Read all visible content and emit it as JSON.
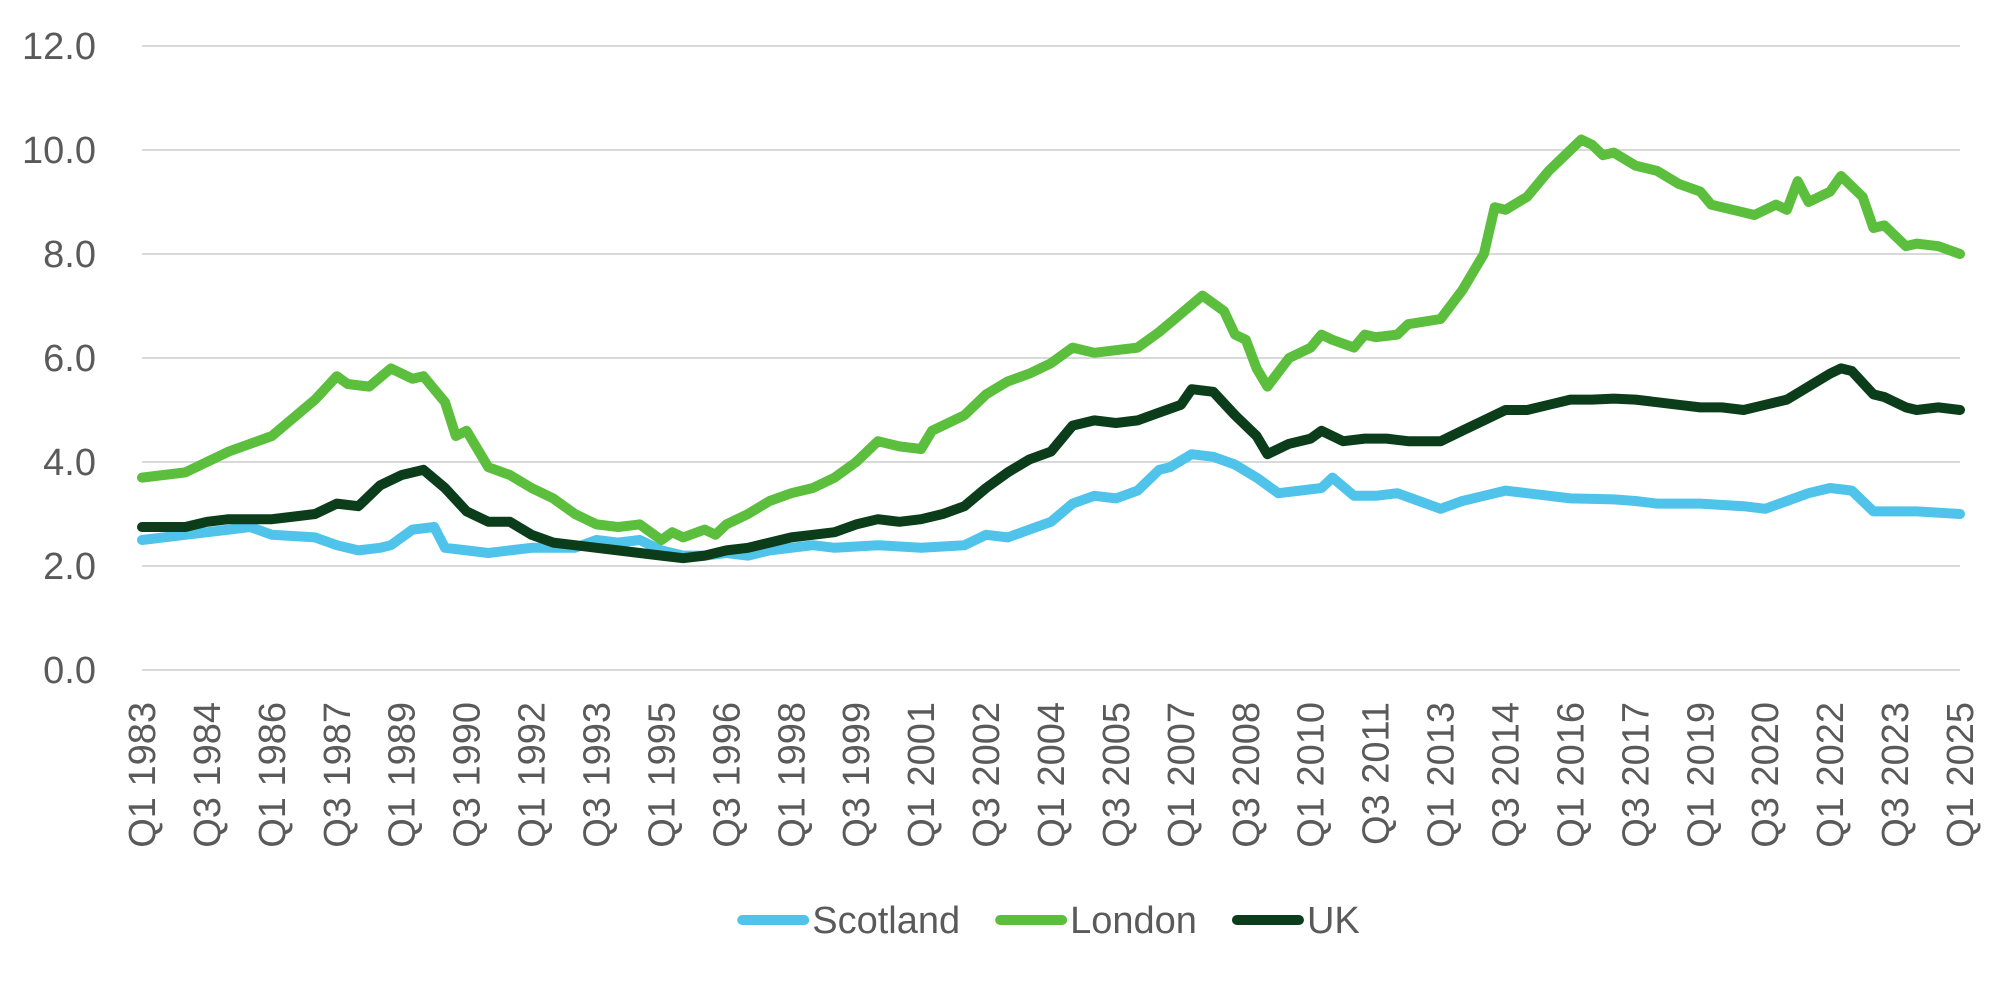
{
  "chart_data": {
    "type": "line",
    "title": "",
    "xlabel": "",
    "ylabel": "",
    "ylim": [
      0,
      12
    ],
    "yticks": [
      "0.0",
      "2.0",
      "4.0",
      "6.0",
      "8.0",
      "10.0",
      "12.0"
    ],
    "xtick_labels": [
      "Q1 1983",
      "Q3 1984",
      "Q1 1986",
      "Q3 1987",
      "Q1 1989",
      "Q3 1990",
      "Q1 1992",
      "Q3 1993",
      "Q1 1995",
      "Q3 1996",
      "Q1 1998",
      "Q3 1999",
      "Q1 2001",
      "Q3 2002",
      "Q1 2004",
      "Q3 2005",
      "Q1 2007",
      "Q3 2008",
      "Q1 2010",
      "Q3 2011",
      "Q1 2013",
      "Q3 2014",
      "Q1 2016",
      "Q3 2017",
      "Q1 2019",
      "Q3 2020",
      "Q1 2022",
      "Q3 2023",
      "Q1 2025"
    ],
    "x_start": "Q1 1983",
    "x_end": "Q1 2025",
    "grid": true,
    "legend_position": "bottom",
    "series": [
      {
        "name": "Scotland",
        "color": "#4fc3ea",
        "points": [
          [
            "Q1 1983",
            2.5
          ],
          [
            "Q1 1984",
            2.6
          ],
          [
            "Q1 1985",
            2.7
          ],
          [
            "Q3 1985",
            2.75
          ],
          [
            "Q1 1986",
            2.6
          ],
          [
            "Q1 1987",
            2.55
          ],
          [
            "Q3 1987",
            2.4
          ],
          [
            "Q1 1988",
            2.3
          ],
          [
            "Q3 1988",
            2.35
          ],
          [
            "Q4 1988",
            2.4
          ],
          [
            "Q2 1989",
            2.7
          ],
          [
            "Q4 1989",
            2.75
          ],
          [
            "Q1 1990",
            2.35
          ],
          [
            "Q3 1990",
            2.3
          ],
          [
            "Q1 1991",
            2.25
          ],
          [
            "Q3 1991",
            2.3
          ],
          [
            "Q1 1992",
            2.35
          ],
          [
            "Q1 1993",
            2.35
          ],
          [
            "Q3 1993",
            2.5
          ],
          [
            "Q1 1994",
            2.45
          ],
          [
            "Q3 1994",
            2.5
          ],
          [
            "Q1 1995",
            2.3
          ],
          [
            "Q3 1995",
            2.2
          ],
          [
            "Q1 1996",
            2.2
          ],
          [
            "Q3 1996",
            2.25
          ],
          [
            "Q1 1997",
            2.2
          ],
          [
            "Q3 1997",
            2.3
          ],
          [
            "Q1 1998",
            2.35
          ],
          [
            "Q3 1998",
            2.4
          ],
          [
            "Q1 1999",
            2.35
          ],
          [
            "Q1 2000",
            2.4
          ],
          [
            "Q1 2001",
            2.35
          ],
          [
            "Q1 2002",
            2.4
          ],
          [
            "Q3 2002",
            2.6
          ],
          [
            "Q1 2003",
            2.55
          ],
          [
            "Q3 2003",
            2.7
          ],
          [
            "Q1 2004",
            2.85
          ],
          [
            "Q3 2004",
            3.2
          ],
          [
            "Q1 2005",
            3.35
          ],
          [
            "Q3 2005",
            3.3
          ],
          [
            "Q1 2006",
            3.45
          ],
          [
            "Q3 2006",
            3.85
          ],
          [
            "Q4 2006",
            3.9
          ],
          [
            "Q2 2007",
            4.15
          ],
          [
            "Q4 2007",
            4.1
          ],
          [
            "Q2 2008",
            3.95
          ],
          [
            "Q4 2008",
            3.7
          ],
          [
            "Q2 2009",
            3.4
          ],
          [
            "Q4 2009",
            3.45
          ],
          [
            "Q2 2010",
            3.5
          ],
          [
            "Q3 2010",
            3.7
          ],
          [
            "Q1 2011",
            3.35
          ],
          [
            "Q3 2011",
            3.35
          ],
          [
            "Q1 2012",
            3.4
          ],
          [
            "Q3 2012",
            3.25
          ],
          [
            "Q1 2013",
            3.1
          ],
          [
            "Q3 2013",
            3.25
          ],
          [
            "Q1 2014",
            3.35
          ],
          [
            "Q3 2014",
            3.45
          ],
          [
            "Q1 2015",
            3.4
          ],
          [
            "Q1 2016",
            3.3
          ],
          [
            "Q1 2017",
            3.28
          ],
          [
            "Q3 2017",
            3.25
          ],
          [
            "Q1 2018",
            3.2
          ],
          [
            "Q1 2019",
            3.2
          ],
          [
            "Q1 2020",
            3.15
          ],
          [
            "Q3 2020",
            3.1
          ],
          [
            "Q1 2021",
            3.25
          ],
          [
            "Q3 2021",
            3.4
          ],
          [
            "Q1 2022",
            3.5
          ],
          [
            "Q3 2022",
            3.45
          ],
          [
            "Q1 2023",
            3.05
          ],
          [
            "Q3 2023",
            3.05
          ],
          [
            "Q1 2024",
            3.05
          ],
          [
            "Q1 2025",
            3.0
          ]
        ]
      },
      {
        "name": "London",
        "color": "#5bbf3d",
        "points": [
          [
            "Q1 1983",
            3.7
          ],
          [
            "Q1 1984",
            3.8
          ],
          [
            "Q3 1984",
            4.0
          ],
          [
            "Q1 1985",
            4.2
          ],
          [
            "Q3 1985",
            4.35
          ],
          [
            "Q1 1986",
            4.5
          ],
          [
            "Q3 1986",
            4.85
          ],
          [
            "Q1 1987",
            5.2
          ],
          [
            "Q3 1987",
            5.65
          ],
          [
            "Q4 1987",
            5.5
          ],
          [
            "Q2 1988",
            5.45
          ],
          [
            "Q4 1988",
            5.8
          ],
          [
            "Q2 1989",
            5.6
          ],
          [
            "Q3 1989",
            5.65
          ],
          [
            "Q1 1990",
            5.15
          ],
          [
            "Q2 1990",
            4.5
          ],
          [
            "Q3 1990",
            4.6
          ],
          [
            "Q1 1991",
            3.9
          ],
          [
            "Q3 1991",
            3.75
          ],
          [
            "Q1 1992",
            3.5
          ],
          [
            "Q3 1992",
            3.3
          ],
          [
            "Q1 1993",
            3.0
          ],
          [
            "Q3 1993",
            2.8
          ],
          [
            "Q1 1994",
            2.75
          ],
          [
            "Q3 1994",
            2.8
          ],
          [
            "Q1 1995",
            2.5
          ],
          [
            "Q2 1995",
            2.65
          ],
          [
            "Q3 1995",
            2.55
          ],
          [
            "Q1 1996",
            2.7
          ],
          [
            "Q2 1996",
            2.6
          ],
          [
            "Q3 1996",
            2.8
          ],
          [
            "Q1 1997",
            3.0
          ],
          [
            "Q3 1997",
            3.25
          ],
          [
            "Q1 1998",
            3.4
          ],
          [
            "Q3 1998",
            3.5
          ],
          [
            "Q1 1999",
            3.7
          ],
          [
            "Q3 1999",
            4.0
          ],
          [
            "Q1 2000",
            4.4
          ],
          [
            "Q3 2000",
            4.3
          ],
          [
            "Q1 2001",
            4.25
          ],
          [
            "Q2 2001",
            4.6
          ],
          [
            "Q3 2001",
            4.7
          ],
          [
            "Q1 2002",
            4.9
          ],
          [
            "Q3 2002",
            5.3
          ],
          [
            "Q1 2003",
            5.55
          ],
          [
            "Q3 2003",
            5.7
          ],
          [
            "Q1 2004",
            5.9
          ],
          [
            "Q3 2004",
            6.2
          ],
          [
            "Q1 2005",
            6.1
          ],
          [
            "Q3 2005",
            6.15
          ],
          [
            "Q1 2006",
            6.2
          ],
          [
            "Q3 2006",
            6.5
          ],
          [
            "Q1 2007",
            6.85
          ],
          [
            "Q3 2007",
            7.2
          ],
          [
            "Q1 2008",
            6.9
          ],
          [
            "Q2 2008",
            6.45
          ],
          [
            "Q3 2008",
            6.35
          ],
          [
            "Q4 2008",
            5.8
          ],
          [
            "Q1 2009",
            5.45
          ],
          [
            "Q3 2009",
            6.0
          ],
          [
            "Q1 2010",
            6.2
          ],
          [
            "Q2 2010",
            6.45
          ],
          [
            "Q3 2010",
            6.35
          ],
          [
            "Q1 2011",
            6.2
          ],
          [
            "Q2 2011",
            6.45
          ],
          [
            "Q3 2011",
            6.4
          ],
          [
            "Q1 2012",
            6.45
          ],
          [
            "Q2 2012",
            6.65
          ],
          [
            "Q1 2013",
            6.75
          ],
          [
            "Q3 2013",
            7.3
          ],
          [
            "Q1 2014",
            8.0
          ],
          [
            "Q2 2014",
            8.9
          ],
          [
            "Q3 2014",
            8.85
          ],
          [
            "Q1 2015",
            9.1
          ],
          [
            "Q3 2015",
            9.6
          ],
          [
            "Q1 2016",
            10.0
          ],
          [
            "Q2 2016",
            10.2
          ],
          [
            "Q3 2016",
            10.1
          ],
          [
            "Q4 2016",
            9.9
          ],
          [
            "Q1 2017",
            9.95
          ],
          [
            "Q3 2017",
            9.7
          ],
          [
            "Q1 2018",
            9.6
          ],
          [
            "Q3 2018",
            9.35
          ],
          [
            "Q1 2019",
            9.2
          ],
          [
            "Q2 2019",
            8.95
          ],
          [
            "Q4 2019",
            8.85
          ],
          [
            "Q2 2020",
            8.75
          ],
          [
            "Q4 2020",
            8.95
          ],
          [
            "Q1 2021",
            8.85
          ],
          [
            "Q2 2021",
            9.4
          ],
          [
            "Q3 2021",
            9.0
          ],
          [
            "Q1 2022",
            9.2
          ],
          [
            "Q2 2022",
            9.5
          ],
          [
            "Q4 2022",
            9.1
          ],
          [
            "Q1 2023",
            8.5
          ],
          [
            "Q2 2023",
            8.55
          ],
          [
            "Q4 2023",
            8.15
          ],
          [
            "Q1 2024",
            8.2
          ],
          [
            "Q3 2024",
            8.15
          ],
          [
            "Q1 2025",
            8.0
          ]
        ]
      },
      {
        "name": "UK",
        "color": "#0b3d1a",
        "points": [
          [
            "Q1 1983",
            2.75
          ],
          [
            "Q1 1984",
            2.75
          ],
          [
            "Q3 1984",
            2.85
          ],
          [
            "Q1 1985",
            2.9
          ],
          [
            "Q3 1985",
            2.9
          ],
          [
            "Q1 1986",
            2.9
          ],
          [
            "Q3 1986",
            2.95
          ],
          [
            "Q1 1987",
            3.0
          ],
          [
            "Q3 1987",
            3.2
          ],
          [
            "Q1 1988",
            3.15
          ],
          [
            "Q3 1988",
            3.55
          ],
          [
            "Q1 1989",
            3.75
          ],
          [
            "Q3 1989",
            3.85
          ],
          [
            "Q1 1990",
            3.5
          ],
          [
            "Q3 1990",
            3.05
          ],
          [
            "Q1 1991",
            2.85
          ],
          [
            "Q3 1991",
            2.85
          ],
          [
            "Q1 1992",
            2.6
          ],
          [
            "Q3 1992",
            2.45
          ],
          [
            "Q1 1993",
            2.4
          ],
          [
            "Q3 1993",
            2.35
          ],
          [
            "Q1 1994",
            2.3
          ],
          [
            "Q3 1994",
            2.25
          ],
          [
            "Q1 1995",
            2.2
          ],
          [
            "Q3 1995",
            2.15
          ],
          [
            "Q1 1996",
            2.2
          ],
          [
            "Q3 1996",
            2.3
          ],
          [
            "Q1 1997",
            2.35
          ],
          [
            "Q3 1997",
            2.45
          ],
          [
            "Q1 1998",
            2.55
          ],
          [
            "Q3 1998",
            2.6
          ],
          [
            "Q1 1999",
            2.65
          ],
          [
            "Q3 1999",
            2.8
          ],
          [
            "Q1 2000",
            2.9
          ],
          [
            "Q3 2000",
            2.85
          ],
          [
            "Q1 2001",
            2.9
          ],
          [
            "Q3 2001",
            3.0
          ],
          [
            "Q1 2002",
            3.15
          ],
          [
            "Q3 2002",
            3.5
          ],
          [
            "Q1 2003",
            3.8
          ],
          [
            "Q3 2003",
            4.05
          ],
          [
            "Q1 2004",
            4.2
          ],
          [
            "Q3 2004",
            4.7
          ],
          [
            "Q1 2005",
            4.8
          ],
          [
            "Q3 2005",
            4.75
          ],
          [
            "Q1 2006",
            4.8
          ],
          [
            "Q3 2006",
            4.95
          ],
          [
            "Q1 2007",
            5.1
          ],
          [
            "Q2 2007",
            5.4
          ],
          [
            "Q4 2007",
            5.35
          ],
          [
            "Q2 2008",
            4.9
          ],
          [
            "Q4 2008",
            4.5
          ],
          [
            "Q1 2009",
            4.15
          ],
          [
            "Q3 2009",
            4.35
          ],
          [
            "Q1 2010",
            4.45
          ],
          [
            "Q2 2010",
            4.6
          ],
          [
            "Q4 2010",
            4.4
          ],
          [
            "Q2 2011",
            4.45
          ],
          [
            "Q4 2011",
            4.45
          ],
          [
            "Q2 2012",
            4.4
          ],
          [
            "Q1 2013",
            4.4
          ],
          [
            "Q3 2013",
            4.6
          ],
          [
            "Q1 2014",
            4.8
          ],
          [
            "Q3 2014",
            5.0
          ],
          [
            "Q1 2015",
            5.0
          ],
          [
            "Q3 2015",
            5.1
          ],
          [
            "Q1 2016",
            5.2
          ],
          [
            "Q3 2016",
            5.2
          ],
          [
            "Q1 2017",
            5.22
          ],
          [
            "Q3 2017",
            5.2
          ],
          [
            "Q1 2018",
            5.15
          ],
          [
            "Q3 2018",
            5.1
          ],
          [
            "Q1 2019",
            5.05
          ],
          [
            "Q3 2019",
            5.05
          ],
          [
            "Q1 2020",
            5.0
          ],
          [
            "Q3 2020",
            5.1
          ],
          [
            "Q1 2021",
            5.2
          ],
          [
            "Q3 2021",
            5.45
          ],
          [
            "Q1 2022",
            5.7
          ],
          [
            "Q2 2022",
            5.8
          ],
          [
            "Q3 2022",
            5.75
          ],
          [
            "Q1 2023",
            5.3
          ],
          [
            "Q2 2023",
            5.25
          ],
          [
            "Q4 2023",
            5.05
          ],
          [
            "Q1 2024",
            5.0
          ],
          [
            "Q3 2024",
            5.05
          ],
          [
            "Q1 2025",
            5.0
          ]
        ]
      }
    ]
  }
}
